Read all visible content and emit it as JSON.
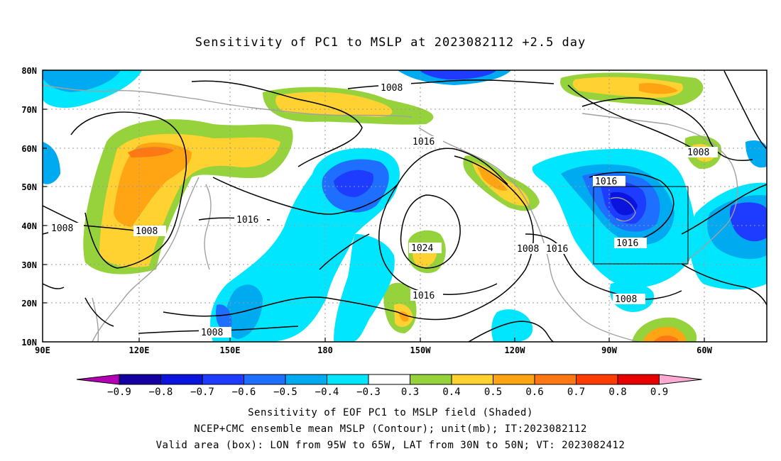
{
  "title": "Sensitivity of PC1 to MSLP at 2023082112 +2.5 day",
  "captions": {
    "line1": "Sensitivity of EOF PC1 to MSLP field (Shaded)",
    "line2": "NCEP+CMC ensemble mean MSLP (Contour); unit(mb); IT:2023082112",
    "line3": "Valid area (box): LON from 95W to 65W, LAT from 30N to 50N; VT: 2023082412"
  },
  "axes": {
    "lat_labels": [
      "80N",
      "70N",
      "60N",
      "50N",
      "40N",
      "30N",
      "20N",
      "10N"
    ],
    "lon_labels": [
      "90E",
      "120E",
      "150E",
      "180",
      "150W",
      "120W",
      "90W",
      "60W"
    ]
  },
  "colorbar": {
    "labels": [
      "-0.9",
      "-0.8",
      "-0.7",
      "-0.6",
      "-0.5",
      "-0.4",
      "-0.3",
      "0.3",
      "0.4",
      "0.5",
      "0.6",
      "0.7",
      "0.8",
      "0.9"
    ],
    "colors": [
      "#1400a0",
      "#0a14dc",
      "#1e3cff",
      "#1e6eff",
      "#00aaf0",
      "#00e6ff",
      "#ffffff",
      "#96d23c",
      "#ffd232",
      "#ffa514",
      "#ff7814",
      "#ff3c00",
      "#e60000"
    ],
    "low_arrow_color": "#b400b4",
    "high_arrow_color": "#ffaad2"
  },
  "contour_labels": {
    "a": "1008",
    "b": "1016",
    "c": "1016",
    "d": "1008",
    "e": "1008",
    "f": "1024",
    "g": "1016",
    "h": "1008",
    "i": "1016",
    "j": "1016",
    "k": "1016",
    "l": "1008",
    "m": "1008"
  },
  "valid_box": {
    "lon_range": "95W to 65W",
    "lat_range": "30N to 50N"
  }
}
